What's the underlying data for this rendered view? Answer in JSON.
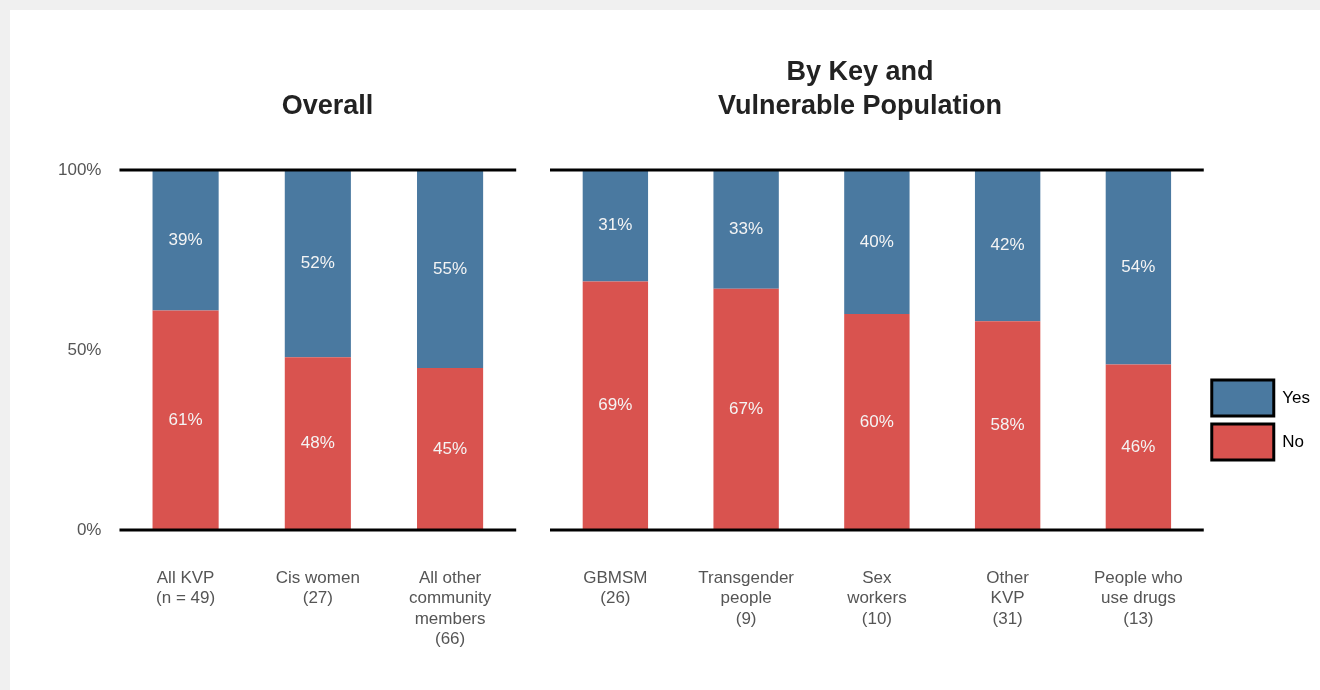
{
  "chart_data": [
    {
      "type": "bar",
      "title": "Overall",
      "stacked": true,
      "categories": [
        "All KVP\n(n = 49)",
        "Cis women\n(27)",
        "All other\ncommunity\nmembers\n(66)"
      ],
      "series": [
        {
          "color": "#d9534f",
          "values": [
            61,
            48,
            45
          ],
          "value_labels": [
            "61%",
            "48%",
            "45%"
          ]
        },
        {
          "color": "#4a79a0",
          "values": [
            39,
            52,
            55
          ],
          "value_labels": [
            "39%",
            "52%",
            "55%"
          ]
        }
      ],
      "ylim": [
        0,
        100
      ],
      "yticks": [
        {
          "value": 0,
          "label": "0%"
        },
        {
          "value": 50,
          "label": "50%"
        },
        {
          "value": 100,
          "label": "100%"
        }
      ],
      "grid": false,
      "legend": false
    },
    {
      "type": "bar",
      "title": "By Key and\nVulnerable Population",
      "stacked": true,
      "categories": [
        "GBMSM\n(26)",
        "Transgender\npeople\n(9)",
        "Sex\nworkers\n(10)",
        "Other\nKVP\n(31)",
        "People who\nuse drugs\n(13)"
      ],
      "series": [
        {
          "name": "No",
          "color": "#d9534f",
          "values": [
            69,
            67,
            60,
            58,
            46
          ],
          "value_labels": [
            "69%",
            "67%",
            "60%",
            "58%",
            "46%"
          ]
        },
        {
          "name": "Yes",
          "color": "#4a79a0",
          "values": [
            31,
            33,
            40,
            42,
            54
          ],
          "value_labels": [
            "31%",
            "33%",
            "40%",
            "42%",
            "54%"
          ]
        }
      ],
      "ylim": [
        0,
        100
      ],
      "grid": false,
      "legend": "right",
      "tick_labels": "x"
    }
  ]
}
